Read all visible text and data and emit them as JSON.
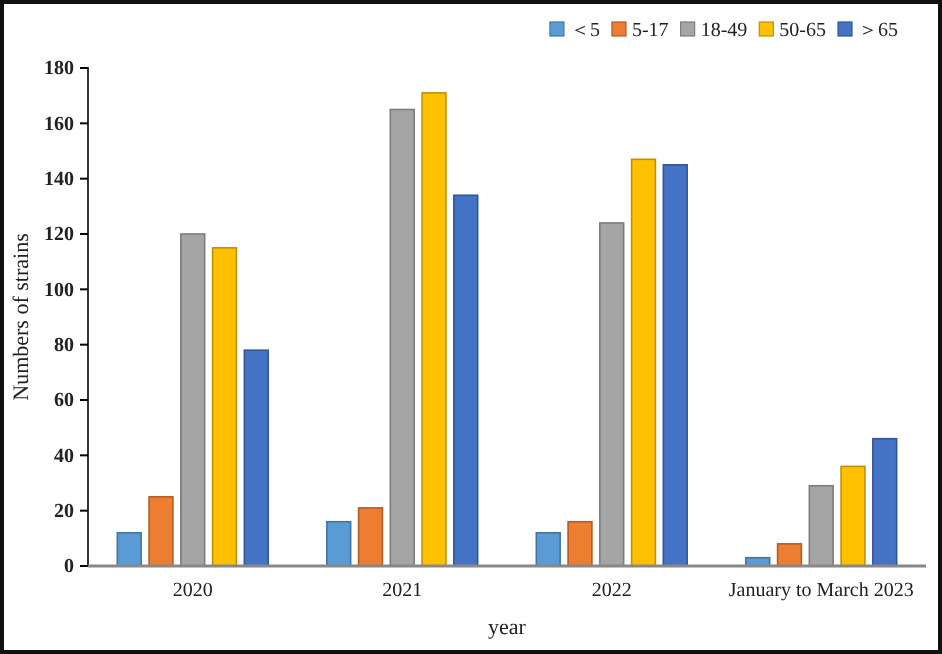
{
  "chart_data": {
    "type": "bar",
    "xlabel": "year",
    "ylabel": "Numbers of strains",
    "categories": [
      "2020",
      "2021",
      "2022",
      "January to March 2023"
    ],
    "series": [
      {
        "name": "＜5",
        "color": "#5b9bd5",
        "values": [
          12,
          16,
          12,
          3
        ]
      },
      {
        "name": "5-17",
        "color": "#ed7d31",
        "values": [
          25,
          21,
          16,
          8
        ]
      },
      {
        "name": "18-49",
        "color": "#a5a5a5",
        "values": [
          120,
          165,
          124,
          29
        ]
      },
      {
        "name": "50-65",
        "color": "#ffc000",
        "values": [
          115,
          171,
          147,
          36
        ]
      },
      {
        "name": "＞65",
        "color": "#4472c4",
        "values": [
          78,
          134,
          145,
          46
        ]
      }
    ],
    "ylim": [
      0,
      180
    ],
    "yticks": [
      0,
      20,
      40,
      60,
      80,
      100,
      120,
      140,
      160,
      180
    ],
    "grid": false,
    "legend": "top right"
  }
}
